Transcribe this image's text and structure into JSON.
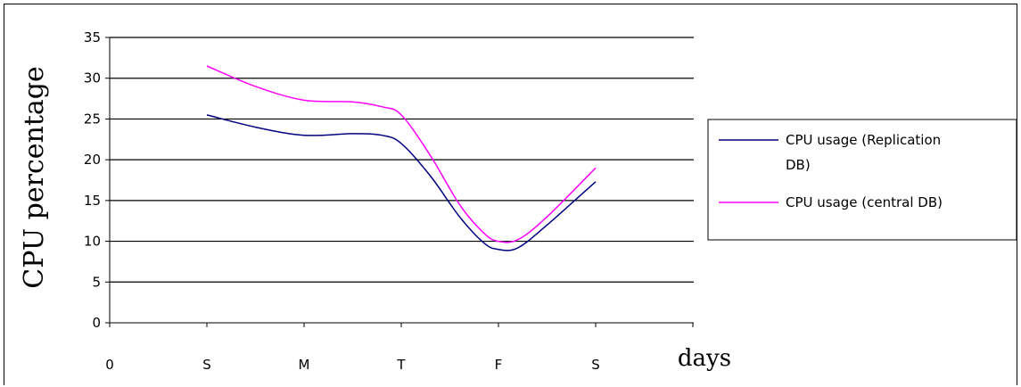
{
  "chart_data": {
    "type": "line",
    "categories": [
      "S",
      "M",
      "T",
      "F",
      "S"
    ],
    "x_origin_label": "0",
    "xlabel": "days",
    "ylabel": "CPU percentage",
    "ylim": [
      0,
      35
    ],
    "yticks": [
      0,
      5,
      10,
      15,
      20,
      25,
      30,
      35
    ],
    "grid": "horizontal",
    "legend_position": "right",
    "series": [
      {
        "name": "CPU usage (Replication DB)",
        "name_lines": [
          "CPU usage (Replication",
          "DB)"
        ],
        "color": "#000080",
        "values": [
          25.5,
          23,
          22,
          9,
          17.3
        ],
        "curve": [
          {
            "x": 1.0,
            "y": 25.5
          },
          {
            "x": 1.5,
            "y": 24.0
          },
          {
            "x": 2.0,
            "y": 23.0
          },
          {
            "x": 2.5,
            "y": 23.2
          },
          {
            "x": 2.8,
            "y": 23.0
          },
          {
            "x": 3.0,
            "y": 22.0
          },
          {
            "x": 3.3,
            "y": 18.0
          },
          {
            "x": 3.6,
            "y": 13.0
          },
          {
            "x": 3.85,
            "y": 9.8
          },
          {
            "x": 4.0,
            "y": 9.0
          },
          {
            "x": 4.2,
            "y": 9.2
          },
          {
            "x": 4.5,
            "y": 12.0
          },
          {
            "x": 5.0,
            "y": 17.3
          }
        ]
      },
      {
        "name": "CPU usage (central DB)",
        "name_lines": [
          "CPU usage (central DB)"
        ],
        "color": "#ff00ff",
        "values": [
          31.5,
          27.3,
          25.5,
          10,
          19
        ],
        "curve": [
          {
            "x": 1.0,
            "y": 31.5
          },
          {
            "x": 1.5,
            "y": 29.0
          },
          {
            "x": 2.0,
            "y": 27.3
          },
          {
            "x": 2.5,
            "y": 27.1
          },
          {
            "x": 2.8,
            "y": 26.5
          },
          {
            "x": 3.0,
            "y": 25.5
          },
          {
            "x": 3.3,
            "y": 20.5
          },
          {
            "x": 3.6,
            "y": 14.5
          },
          {
            "x": 3.85,
            "y": 11.0
          },
          {
            "x": 4.0,
            "y": 10.0
          },
          {
            "x": 4.2,
            "y": 10.2
          },
          {
            "x": 4.5,
            "y": 13.0
          },
          {
            "x": 5.0,
            "y": 19.0
          }
        ]
      }
    ]
  }
}
